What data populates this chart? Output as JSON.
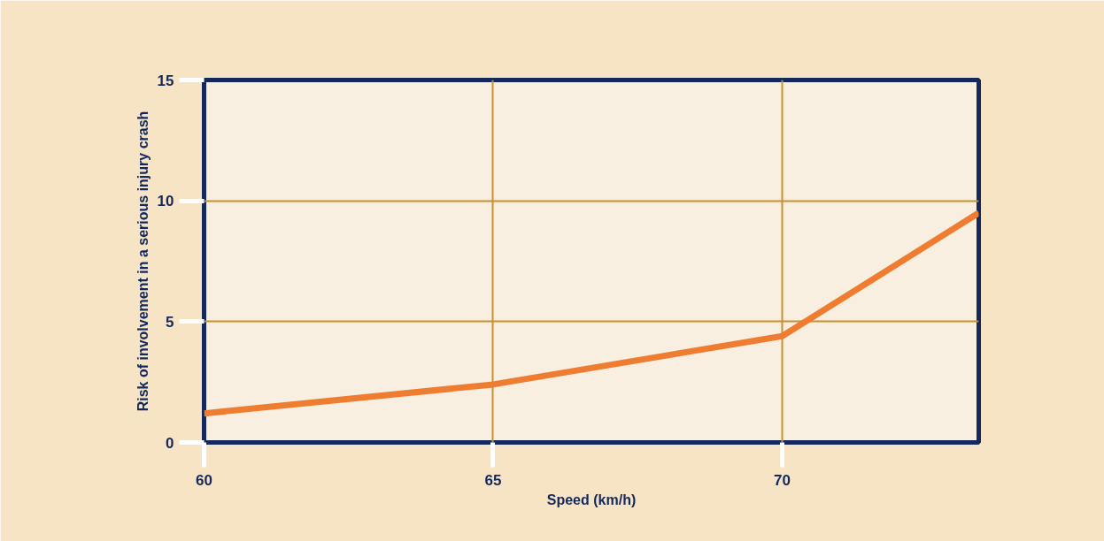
{
  "chart_data": {
    "type": "line",
    "xlabel": "Speed (km/h)",
    "ylabel": "Risk of involvement in a serious injury crash",
    "x": [
      60,
      65,
      70,
      73.4
    ],
    "series": [
      {
        "color": "#ee7d31",
        "values": [
          1.2,
          2.4,
          4.4,
          9.5
        ]
      }
    ],
    "xlim": [
      60,
      73.4
    ],
    "xticks": [
      60,
      65,
      70
    ],
    "ylim": [
      0,
      15
    ],
    "yticks": [
      0,
      5,
      10,
      15
    ],
    "grid": true,
    "marker": "none",
    "line_style": "solid"
  }
}
